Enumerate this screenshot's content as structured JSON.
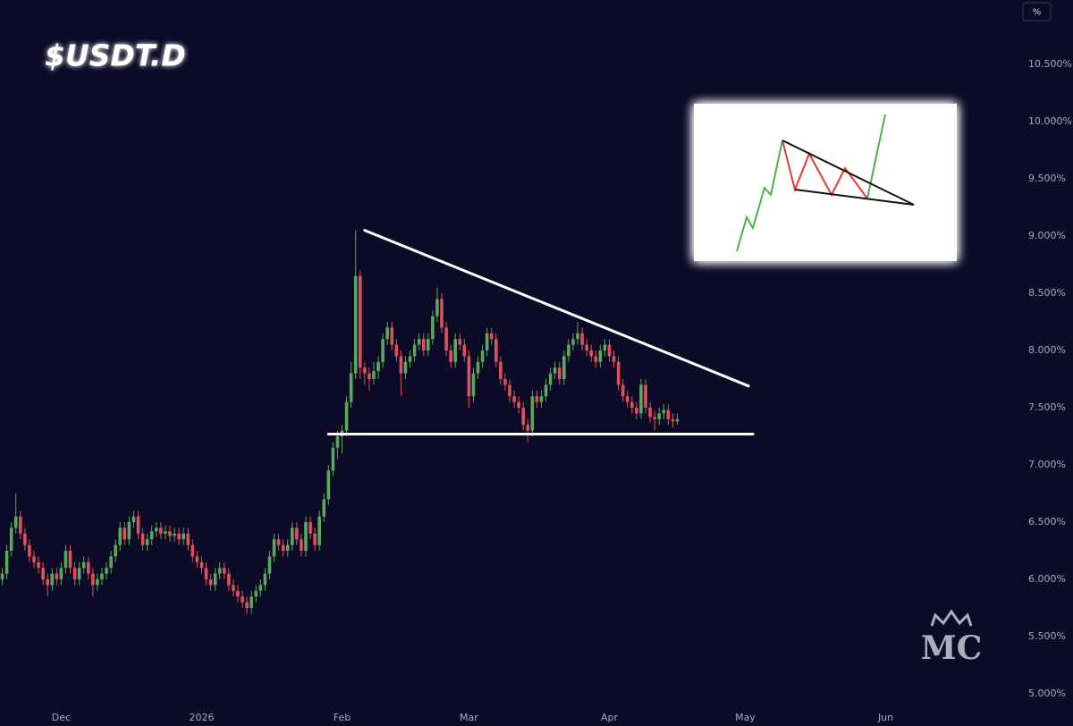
{
  "chart_data": {
    "type": "candlestick",
    "title": "$USDT.D",
    "unit_button": "%",
    "watermark": "MC",
    "x": [
      0,
      1,
      2,
      3,
      4,
      5,
      6,
      7,
      8,
      9,
      10,
      11,
      12,
      13,
      14,
      15,
      16,
      17,
      18,
      19,
      20,
      21,
      22,
      23,
      24,
      25,
      26,
      27,
      28,
      29,
      30,
      31,
      32,
      33,
      34,
      35,
      36,
      37,
      38,
      39,
      40,
      41,
      42,
      43,
      44,
      45,
      46,
      47,
      48,
      49,
      50,
      51,
      52,
      53,
      54,
      55,
      56,
      57,
      58,
      59,
      60,
      61,
      62,
      63,
      64,
      65,
      66,
      67,
      68,
      69,
      70,
      71,
      72,
      73,
      74,
      75,
      76,
      77,
      78,
      79,
      80,
      81,
      82,
      83,
      84,
      85,
      86,
      87,
      88,
      89,
      90,
      91,
      92,
      93,
      94,
      95,
      96,
      97,
      98,
      99,
      100,
      101,
      102,
      103,
      104,
      105,
      106,
      107,
      108,
      109,
      110,
      111,
      112,
      113,
      114,
      115,
      116,
      117,
      118,
      119,
      120,
      121,
      122,
      123,
      124,
      125,
      126,
      127,
      128,
      129,
      130,
      131,
      132,
      133,
      134,
      135,
      136,
      137,
      138,
      139,
      140,
      141,
      142,
      143,
      144,
      145,
      146,
      147,
      148,
      149
    ],
    "open": [
      6.0,
      6.05,
      6.25,
      6.45,
      6.55,
      6.4,
      6.3,
      6.2,
      6.15,
      6.1,
      6.0,
      5.95,
      6.05,
      6.0,
      6.1,
      6.25,
      6.1,
      6.0,
      6.1,
      6.15,
      6.05,
      5.95,
      6.0,
      6.05,
      6.1,
      6.2,
      6.3,
      6.45,
      6.35,
      6.5,
      6.55,
      6.4,
      6.3,
      6.35,
      6.42,
      6.45,
      6.4,
      6.42,
      6.38,
      6.4,
      6.35,
      6.4,
      6.3,
      6.2,
      6.15,
      6.1,
      6.0,
      5.95,
      6.05,
      6.1,
      6.05,
      5.95,
      5.9,
      5.85,
      5.8,
      5.75,
      5.85,
      5.9,
      5.95,
      6.05,
      6.2,
      6.35,
      6.3,
      6.25,
      6.3,
      6.45,
      6.35,
      6.25,
      6.5,
      6.4,
      6.3,
      6.55,
      6.7,
      6.95,
      7.15,
      7.25,
      7.3,
      7.55,
      7.8,
      8.65,
      7.85,
      7.8,
      7.75,
      7.82,
      7.9,
      8.1,
      8.2,
      8.05,
      7.95,
      7.8,
      7.9,
      7.95,
      8.05,
      8.1,
      8.0,
      8.1,
      8.3,
      8.45,
      8.2,
      8.0,
      7.9,
      8.1,
      8.05,
      7.95,
      7.6,
      7.8,
      7.9,
      8.0,
      8.15,
      8.1,
      7.9,
      7.75,
      7.7,
      7.6,
      7.55,
      7.5,
      7.35,
      7.3,
      7.6,
      7.55,
      7.6,
      7.7,
      7.8,
      7.85,
      7.75,
      7.95,
      8.05,
      8.1,
      8.15,
      8.05,
      8.0,
      7.95,
      7.9,
      8.0,
      8.05,
      7.95,
      7.9,
      7.7,
      7.6,
      7.55,
      7.5,
      7.45,
      7.7,
      7.5,
      7.42,
      7.4,
      7.45,
      7.48,
      7.4,
      7.38
    ],
    "high": [
      6.1,
      6.3,
      6.5,
      6.75,
      6.6,
      6.45,
      6.35,
      6.25,
      6.2,
      6.15,
      6.05,
      6.1,
      6.1,
      6.15,
      6.3,
      6.3,
      6.15,
      6.15,
      6.2,
      6.2,
      6.1,
      6.05,
      6.1,
      6.15,
      6.25,
      6.35,
      6.5,
      6.5,
      6.55,
      6.6,
      6.6,
      6.45,
      6.4,
      6.47,
      6.5,
      6.5,
      6.47,
      6.47,
      6.45,
      6.45,
      6.45,
      6.45,
      6.35,
      6.25,
      6.2,
      6.15,
      6.05,
      6.1,
      6.15,
      6.15,
      6.1,
      6.0,
      5.95,
      5.9,
      5.85,
      5.9,
      5.95,
      6.0,
      6.1,
      6.25,
      6.4,
      6.4,
      6.35,
      6.35,
      6.5,
      6.5,
      6.4,
      6.55,
      6.55,
      6.45,
      6.6,
      6.75,
      7.0,
      7.2,
      7.3,
      7.35,
      7.6,
      7.9,
      9.05,
      8.7,
      7.9,
      7.85,
      7.9,
      7.95,
      8.15,
      8.25,
      8.25,
      8.1,
      8.0,
      7.95,
      8.0,
      8.1,
      8.15,
      8.15,
      8.15,
      8.35,
      8.55,
      8.5,
      8.25,
      8.05,
      8.15,
      8.15,
      8.1,
      8.0,
      7.85,
      7.95,
      8.05,
      8.2,
      8.2,
      8.15,
      7.95,
      7.8,
      7.75,
      7.65,
      7.6,
      7.55,
      7.4,
      7.65,
      7.65,
      7.65,
      7.75,
      7.85,
      7.9,
      7.9,
      8.0,
      8.1,
      8.15,
      8.25,
      8.2,
      8.1,
      8.05,
      8.0,
      8.05,
      8.1,
      8.1,
      8.0,
      7.95,
      7.75,
      7.65,
      7.6,
      7.55,
      7.75,
      7.75,
      7.55,
      7.47,
      7.5,
      7.53,
      7.53,
      7.45,
      7.45
    ],
    "low": [
      5.95,
      6.0,
      6.2,
      6.4,
      6.35,
      6.25,
      6.15,
      6.1,
      6.05,
      5.95,
      5.85,
      5.9,
      5.95,
      5.95,
      6.05,
      6.05,
      5.95,
      5.95,
      6.05,
      6.0,
      5.85,
      5.9,
      5.95,
      6.0,
      6.05,
      6.15,
      6.25,
      6.3,
      6.3,
      6.45,
      6.35,
      6.25,
      6.25,
      6.3,
      6.37,
      6.35,
      6.35,
      6.33,
      6.33,
      6.3,
      6.3,
      6.25,
      6.15,
      6.1,
      6.05,
      5.95,
      5.9,
      5.9,
      6.0,
      6.0,
      5.9,
      5.85,
      5.8,
      5.75,
      5.7,
      5.7,
      5.8,
      5.85,
      5.9,
      6.0,
      6.15,
      6.25,
      6.2,
      6.2,
      6.25,
      6.3,
      6.2,
      6.2,
      6.35,
      6.25,
      6.25,
      6.5,
      6.65,
      6.9,
      7.05,
      7.1,
      7.25,
      7.5,
      7.75,
      7.75,
      7.7,
      7.65,
      7.7,
      7.75,
      7.85,
      8.05,
      8.0,
      7.9,
      7.6,
      7.75,
      7.85,
      7.9,
      8.0,
      7.95,
      7.95,
      8.05,
      8.25,
      8.15,
      7.95,
      7.85,
      7.85,
      8.0,
      7.9,
      7.5,
      7.55,
      7.75,
      7.85,
      7.95,
      8.05,
      7.85,
      7.7,
      7.65,
      7.55,
      7.5,
      7.45,
      7.3,
      7.2,
      7.25,
      7.5,
      7.5,
      7.55,
      7.65,
      7.75,
      7.7,
      7.7,
      7.9,
      8.0,
      8.05,
      8.0,
      7.95,
      7.9,
      7.85,
      7.85,
      7.95,
      7.9,
      7.85,
      7.65,
      7.55,
      7.5,
      7.45,
      7.4,
      7.4,
      7.45,
      7.37,
      7.3,
      7.35,
      7.4,
      7.35,
      7.33,
      7.35
    ],
    "close": [
      6.05,
      6.25,
      6.45,
      6.55,
      6.4,
      6.3,
      6.2,
      6.15,
      6.1,
      6.0,
      5.95,
      6.05,
      6.0,
      6.1,
      6.25,
      6.1,
      6.0,
      6.1,
      6.15,
      6.05,
      5.95,
      6.0,
      6.05,
      6.1,
      6.2,
      6.3,
      6.45,
      6.35,
      6.5,
      6.55,
      6.4,
      6.3,
      6.35,
      6.42,
      6.45,
      6.4,
      6.42,
      6.38,
      6.4,
      6.35,
      6.4,
      6.3,
      6.2,
      6.15,
      6.1,
      6.0,
      5.95,
      6.05,
      6.1,
      6.05,
      5.95,
      5.9,
      5.85,
      5.8,
      5.75,
      5.85,
      5.9,
      5.95,
      6.05,
      6.2,
      6.35,
      6.3,
      6.25,
      6.3,
      6.45,
      6.35,
      6.25,
      6.5,
      6.4,
      6.3,
      6.55,
      6.7,
      6.95,
      7.15,
      7.25,
      7.3,
      7.55,
      7.8,
      8.65,
      7.85,
      7.8,
      7.75,
      7.82,
      7.9,
      8.1,
      8.2,
      8.05,
      7.95,
      7.8,
      7.9,
      7.95,
      8.05,
      8.1,
      8.0,
      8.1,
      8.3,
      8.45,
      8.2,
      8.0,
      7.9,
      8.1,
      8.05,
      7.95,
      7.6,
      7.8,
      7.9,
      8.0,
      8.15,
      8.1,
      7.9,
      7.75,
      7.7,
      7.6,
      7.55,
      7.5,
      7.35,
      7.3,
      7.6,
      7.55,
      7.6,
      7.7,
      7.8,
      7.85,
      7.75,
      7.95,
      8.05,
      8.1,
      8.15,
      8.05,
      8.0,
      7.95,
      7.9,
      8.0,
      8.05,
      7.95,
      7.9,
      7.7,
      7.6,
      7.55,
      7.5,
      7.45,
      7.7,
      7.5,
      7.42,
      7.4,
      7.45,
      7.48,
      7.4,
      7.38,
      7.4
    ],
    "up_color": "#5aa85a",
    "down_color": "#e0505a",
    "xlim": [
      -0.5,
      224.5
    ],
    "xticks": [
      {
        "value": 13,
        "label": "Dec"
      },
      {
        "value": 44,
        "label": "2026"
      },
      {
        "value": 75,
        "label": "Feb"
      },
      {
        "value": 103,
        "label": "Mar"
      },
      {
        "value": 134,
        "label": "Apr"
      },
      {
        "value": 164,
        "label": "May"
      },
      {
        "value": 195,
        "label": "Jun"
      }
    ],
    "ylim": [
      4.75,
      11.0
    ],
    "yticks": [
      {
        "value": 5.0,
        "label": "5.000%"
      },
      {
        "value": 5.5,
        "label": "5.500%"
      },
      {
        "value": 6.0,
        "label": "6.000%"
      },
      {
        "value": 6.5,
        "label": "6.500%"
      },
      {
        "value": 7.0,
        "label": "7.000%"
      },
      {
        "value": 7.5,
        "label": "7.500%"
      },
      {
        "value": 8.0,
        "label": "8.000%"
      },
      {
        "value": 8.5,
        "label": "8.500%"
      },
      {
        "value": 9.0,
        "label": "9.000%"
      },
      {
        "value": 9.5,
        "label": "9.500%"
      },
      {
        "value": 10.0,
        "label": "10.000%"
      },
      {
        "value": 10.5,
        "label": "10.500%"
      }
    ],
    "trendlines": [
      {
        "x": [
          80,
          164.7
        ],
        "y": [
          9.05,
          7.69
        ],
        "color": "#ffffff"
      },
      {
        "x": [
          72,
          165.7
        ],
        "y": [
          7.27,
          7.27
        ],
        "color": "#ffffff"
      }
    ]
  }
}
